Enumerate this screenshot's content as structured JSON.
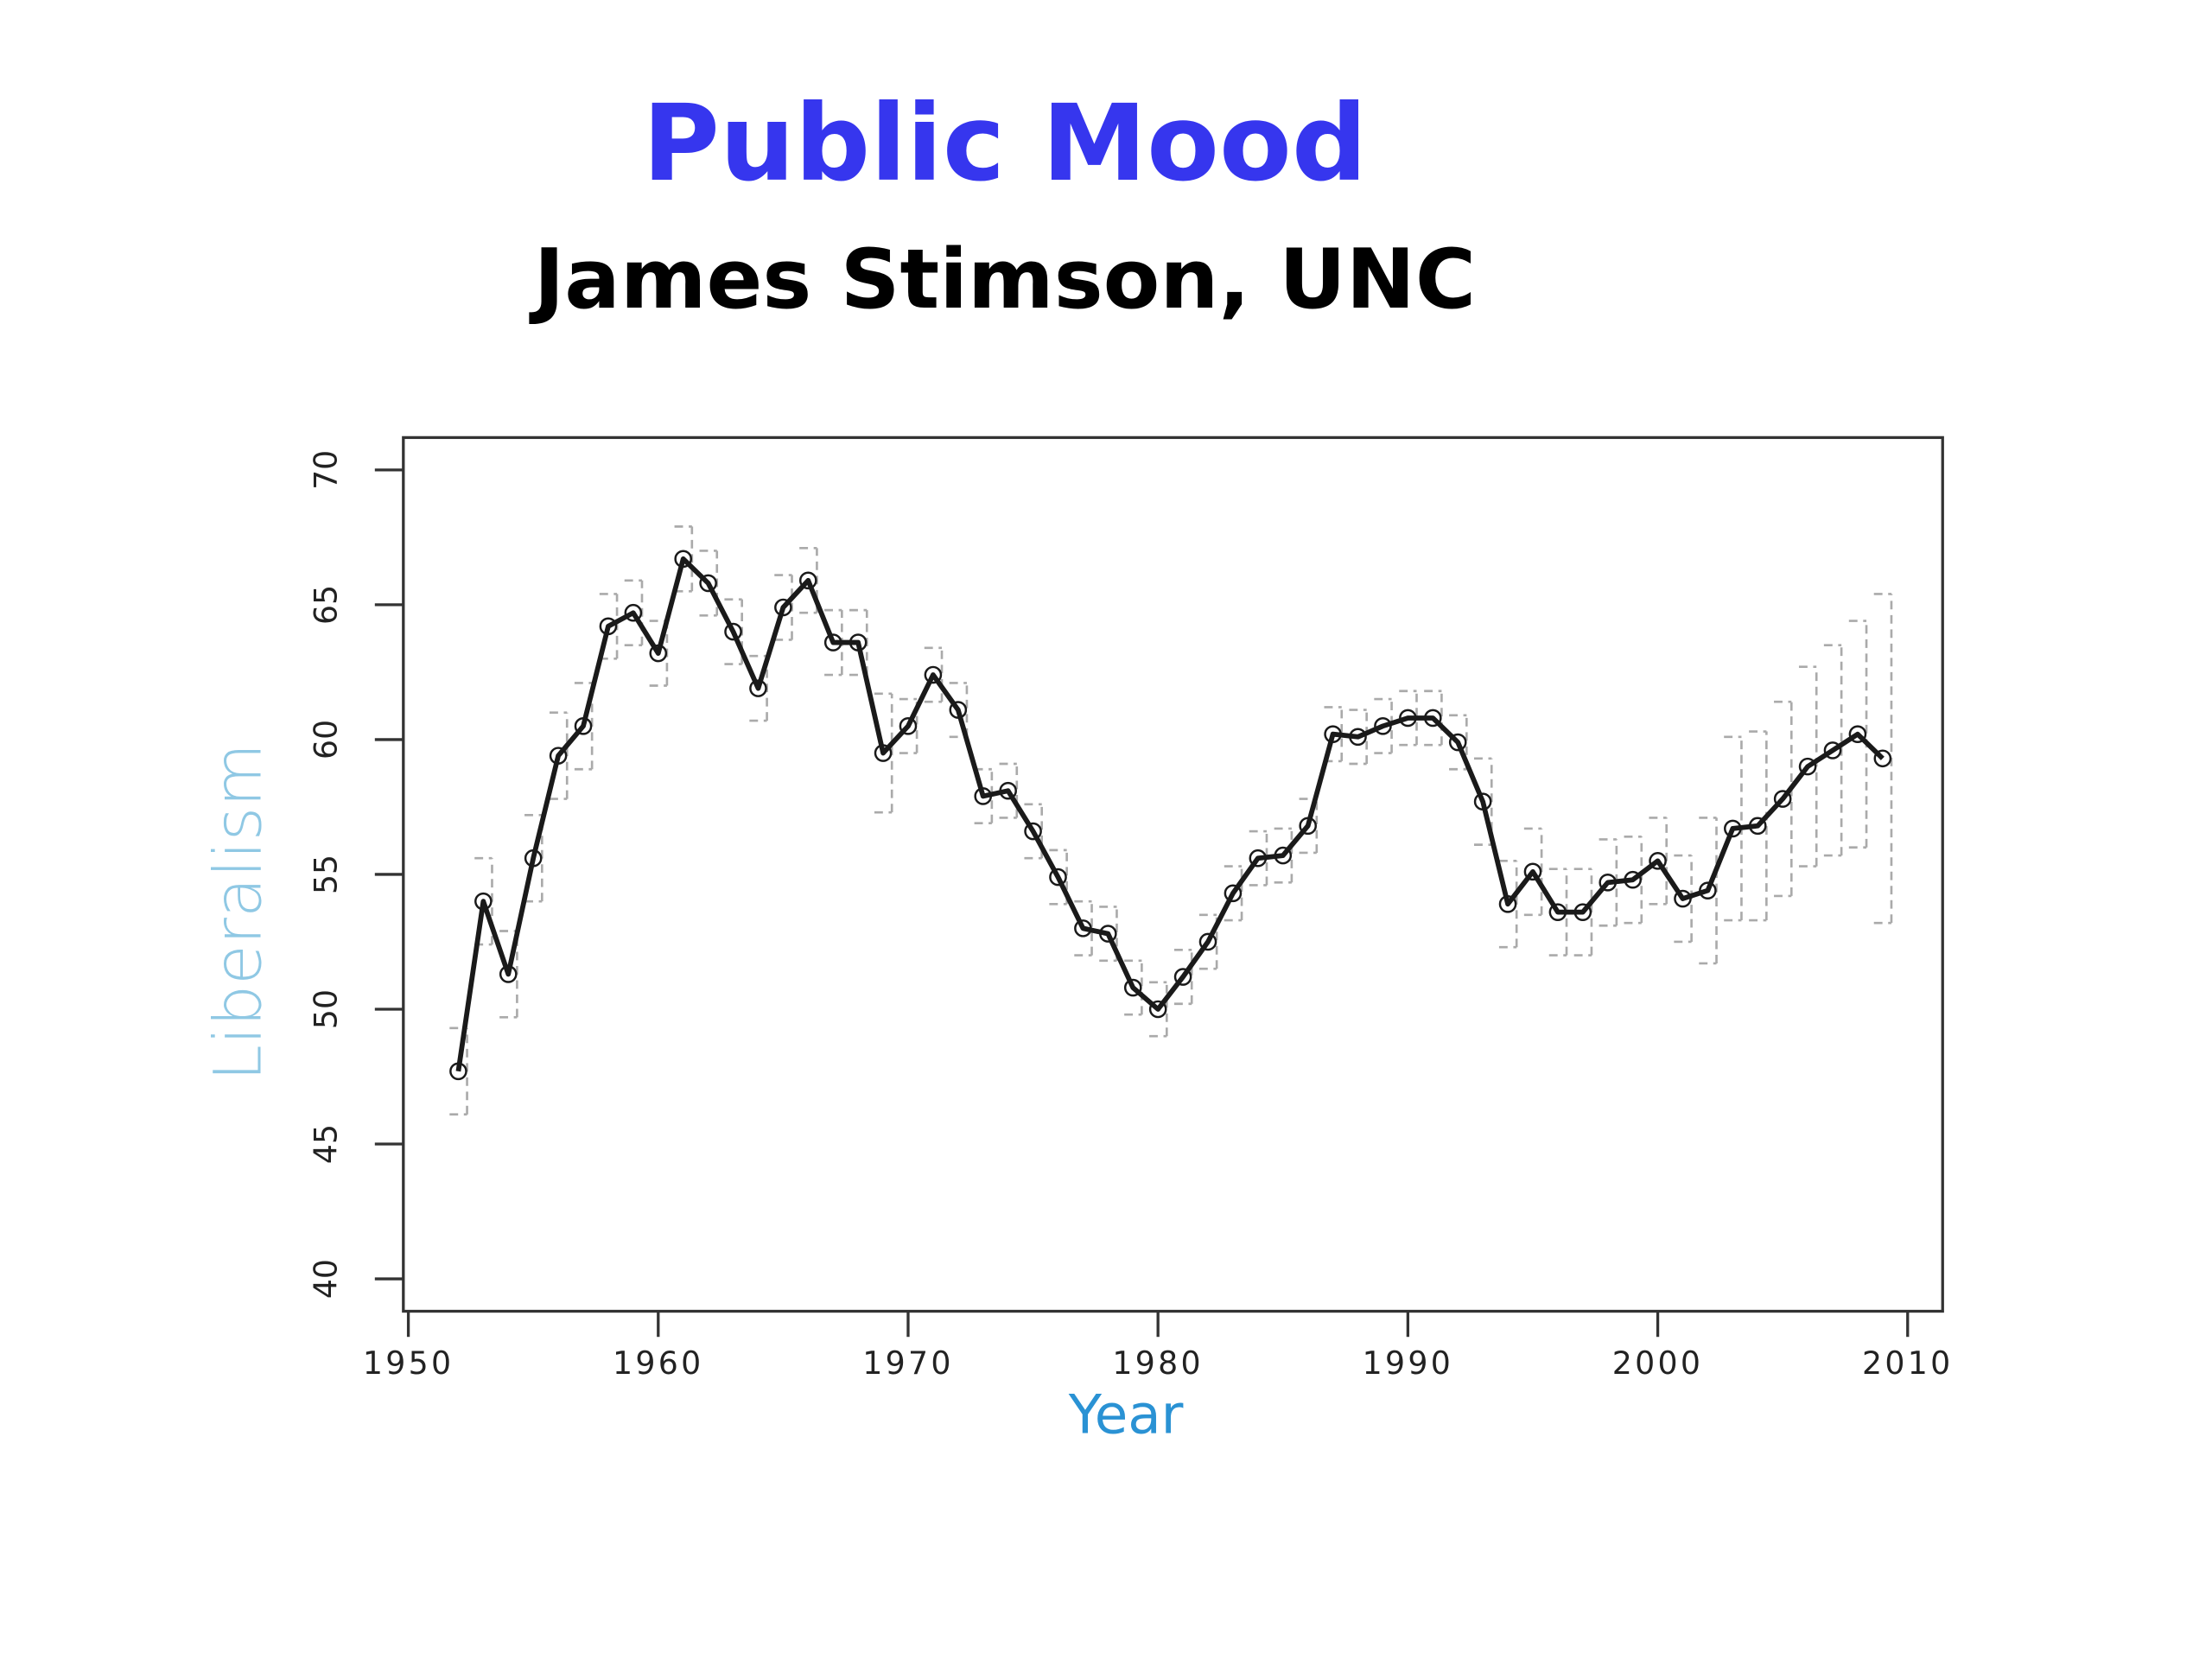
{
  "chart_data": {
    "type": "line",
    "title": "Public Mood",
    "subtitle": "James Stimson, UNC",
    "x_label": "Year",
    "y_label": "Liberalism",
    "x": [
      1952,
      1953,
      1954,
      1955,
      1956,
      1957,
      1958,
      1959,
      1960,
      1961,
      1962,
      1963,
      1964,
      1965,
      1966,
      1967,
      1968,
      1969,
      1970,
      1971,
      1972,
      1973,
      1974,
      1975,
      1976,
      1977,
      1978,
      1979,
      1980,
      1981,
      1982,
      1983,
      1984,
      1985,
      1986,
      1987,
      1988,
      1989,
      1990,
      1991,
      1992,
      1993,
      1994,
      1995,
      1996,
      1997,
      1998,
      1999,
      2000,
      2001,
      2002,
      2003,
      2004,
      2005,
      2006,
      2007,
      2008,
      2009
    ],
    "values": [
      47.7,
      54.0,
      51.3,
      55.6,
      59.4,
      60.5,
      64.2,
      64.7,
      63.2,
      66.7,
      65.8,
      64.0,
      61.9,
      64.9,
      65.9,
      63.6,
      63.6,
      59.5,
      60.5,
      62.4,
      61.1,
      57.9,
      58.1,
      56.6,
      54.9,
      53.0,
      52.8,
      50.8,
      50.0,
      51.2,
      52.5,
      54.3,
      55.6,
      55.7,
      56.8,
      60.2,
      60.1,
      60.5,
      60.8,
      60.8,
      59.9,
      57.7,
      53.9,
      55.1,
      53.6,
      53.6,
      54.7,
      54.8,
      55.5,
      54.1,
      54.4,
      56.7,
      56.8,
      57.8,
      59.0,
      59.6,
      60.2,
      59.3
    ],
    "lower": [
      46.1,
      52.4,
      49.7,
      54.0,
      57.8,
      58.9,
      63.0,
      63.5,
      62.0,
      65.5,
      64.6,
      62.8,
      60.7,
      63.7,
      64.7,
      62.4,
      62.4,
      57.3,
      59.5,
      61.4,
      60.1,
      56.9,
      57.1,
      55.6,
      53.9,
      52.0,
      51.8,
      49.8,
      49.0,
      50.2,
      51.5,
      53.3,
      54.6,
      54.7,
      55.8,
      59.2,
      59.1,
      59.5,
      59.8,
      59.8,
      58.9,
      56.1,
      52.3,
      53.5,
      52.0,
      52.0,
      53.1,
      53.2,
      53.9,
      52.5,
      51.7,
      53.3,
      53.3,
      54.2,
      55.3,
      55.7,
      56.0,
      53.2
    ],
    "upper": [
      49.3,
      55.6,
      52.9,
      57.2,
      61.0,
      62.1,
      65.4,
      65.9,
      64.4,
      67.9,
      67.0,
      65.2,
      63.1,
      66.1,
      67.1,
      64.8,
      64.8,
      61.7,
      61.5,
      63.4,
      62.1,
      58.9,
      59.1,
      57.6,
      55.9,
      54.0,
      53.8,
      51.8,
      51.0,
      52.2,
      53.5,
      55.3,
      56.6,
      56.7,
      57.8,
      61.2,
      61.1,
      61.5,
      61.8,
      61.8,
      60.9,
      59.3,
      55.5,
      56.7,
      55.2,
      55.2,
      56.3,
      56.4,
      57.1,
      55.7,
      57.1,
      60.1,
      60.3,
      61.4,
      62.7,
      63.5,
      64.4,
      65.4
    ],
    "color": "#1a1a1a",
    "band_color": "#aaaaaa",
    "xlim": [
      1949.8,
      2011.4
    ],
    "xticks": [
      1950,
      1960,
      1970,
      1980,
      1990,
      2000,
      2010
    ],
    "ylim": [
      38.8,
      71.2
    ],
    "yticks": [
      40,
      45,
      50,
      55,
      60,
      65,
      70
    ]
  }
}
